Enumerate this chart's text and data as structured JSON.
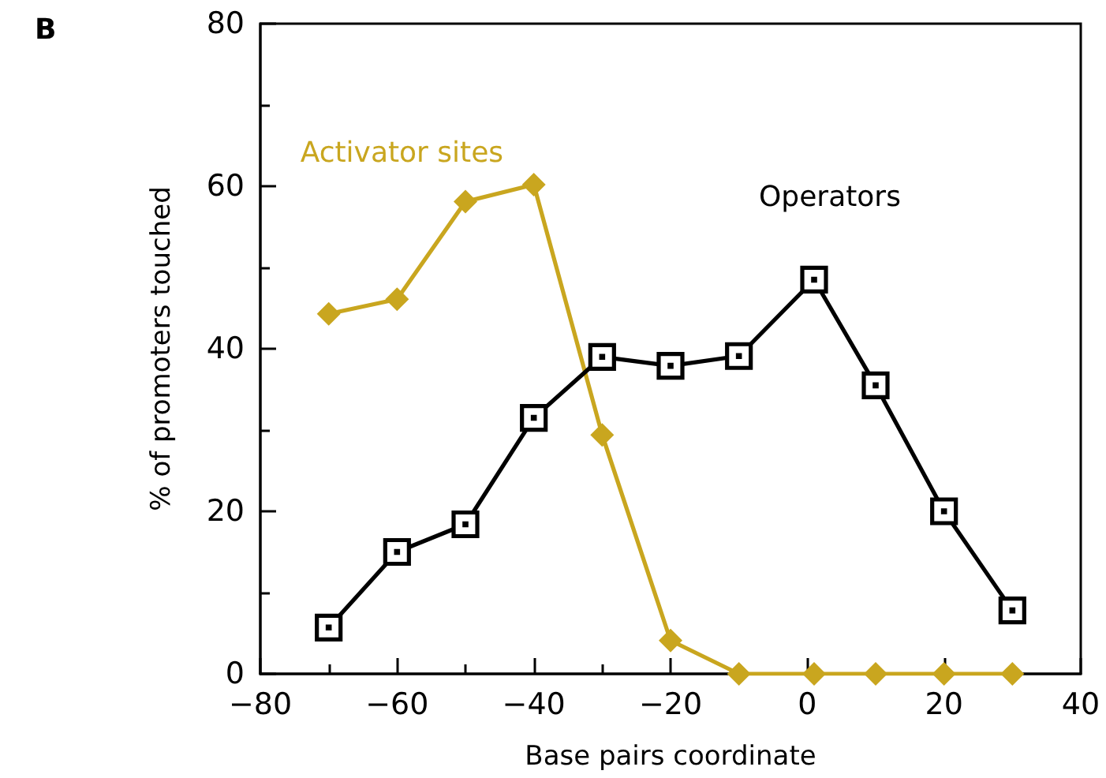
{
  "chart_data": {
    "type": "line",
    "xlabel": "Base pairs coordinate",
    "ylabel": "% of promoters touched",
    "annotations": [
      "B"
    ],
    "x": [
      -70,
      -60,
      -50,
      -40,
      -30,
      -20,
      -10,
      1,
      10,
      20,
      30
    ],
    "series": [
      {
        "name": "Activator sites",
        "color": "#c9a61f",
        "marker": "diamond",
        "values": [
          44.3,
          46.1,
          58.1,
          60.2,
          29.4,
          4.1,
          0,
          0,
          0,
          0,
          0
        ]
      },
      {
        "name": "Operators",
        "color": "#000000",
        "marker": "square",
        "values": [
          5.7,
          15.0,
          18.4,
          31.5,
          39.0,
          37.9,
          39.1,
          48.5,
          35.5,
          20.0,
          7.8
        ]
      }
    ],
    "xlim": [
      -80,
      40
    ],
    "xticks": [
      -80,
      {
        "value": -70,
        "label": null
      },
      -60,
      {
        "value": -50,
        "label": null
      },
      -40,
      {
        "value": -30,
        "label": null
      },
      -20,
      {
        "value": -10,
        "label": null
      },
      0,
      {
        "value": 10,
        "label": null
      },
      20,
      {
        "value": 30,
        "label": null
      },
      40
    ],
    "ylim": [
      0,
      80
    ],
    "yticks": [
      0,
      {
        "value": 10,
        "label": null
      },
      20,
      {
        "value": 30,
        "label": null
      },
      40,
      {
        "value": 50,
        "label": null
      },
      60,
      {
        "value": 70,
        "label": null
      },
      80
    ],
    "line_style": "solid"
  }
}
